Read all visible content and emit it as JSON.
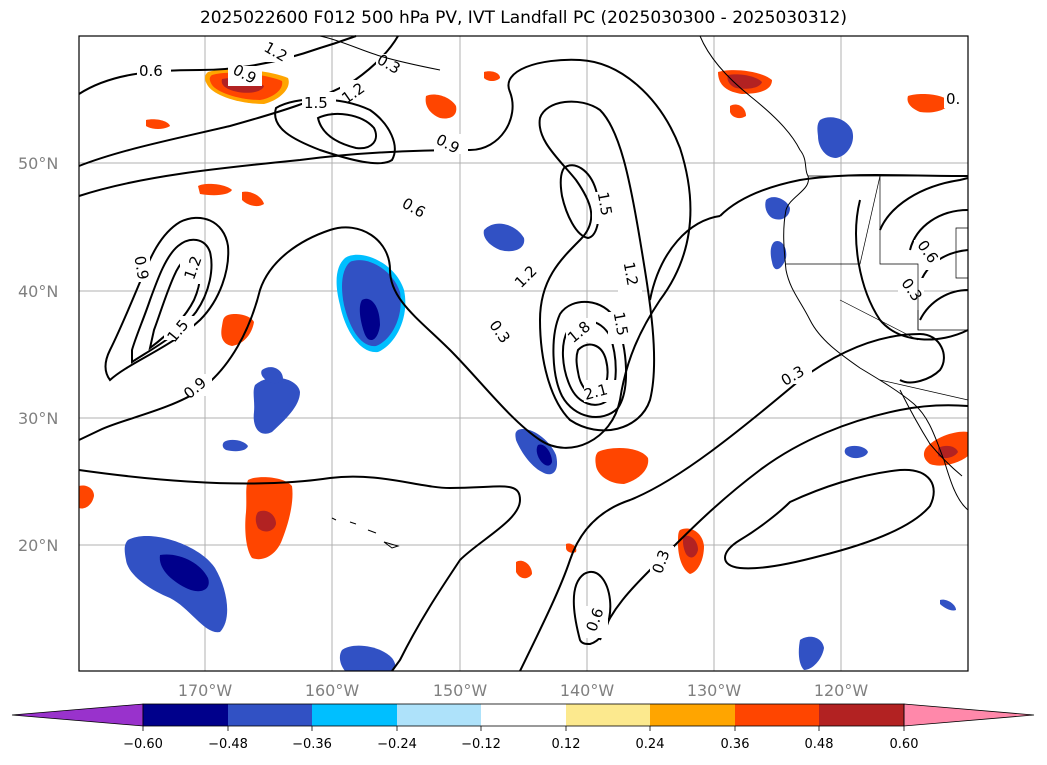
{
  "title": "2025022600 F012 500 hPa PV, IVT Landfall PC (2025030300 - 2025030312)",
  "axes": {
    "lat_ticks": [
      "20°N",
      "30°N",
      "40°N",
      "50°N"
    ],
    "lon_ticks": [
      "170°W",
      "160°W",
      "150°W",
      "140°W",
      "130°W",
      "120°W"
    ],
    "grid": true,
    "lon_range": [
      -180,
      -110
    ],
    "lat_range": [
      10,
      60
    ]
  },
  "colorbar": {
    "orientation": "horizontal",
    "extend": "both",
    "ticks": [
      "−0.60",
      "−0.48",
      "−0.36",
      "−0.24",
      "−0.12",
      "0.12",
      "0.24",
      "0.36",
      "0.48",
      "0.60"
    ],
    "colors": [
      "#9932cc",
      "#00008b",
      "#3151c4",
      "#00bfff",
      "#aee2fa",
      "#ffffff",
      "#fce98e",
      "#ffa500",
      "#ff4500",
      "#b22222",
      "#ff88aa"
    ]
  },
  "contour_labels": [
    {
      "text": "0.6"
    },
    {
      "text": "0.9"
    },
    {
      "text": "1.2"
    },
    {
      "text": "1.5"
    },
    {
      "text": "1.2"
    },
    {
      "text": "0.9"
    },
    {
      "text": "0.6"
    },
    {
      "text": "0.9"
    },
    {
      "text": "1.2"
    },
    {
      "text": "1.5"
    },
    {
      "text": "0.9"
    },
    {
      "text": "0.3"
    },
    {
      "text": "1.2"
    },
    {
      "text": "1.5"
    },
    {
      "text": "1.2"
    },
    {
      "text": "1.5"
    },
    {
      "text": "1.8"
    },
    {
      "text": "2.1"
    },
    {
      "text": "0.3"
    },
    {
      "text": "0.3"
    },
    {
      "text": "0.6"
    },
    {
      "text": "0.6"
    },
    {
      "text": "0.3"
    },
    {
      "text": "0.3"
    },
    {
      "text": "0."
    }
  ],
  "colors": {
    "contour": "#000000",
    "grid": "#b0b0b0",
    "tick_label": "#808080"
  }
}
